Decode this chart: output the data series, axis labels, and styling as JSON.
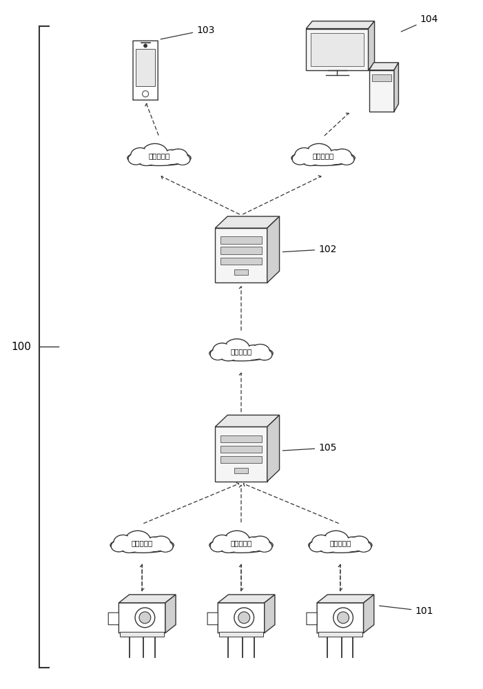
{
  "bg_color": "#ffffff",
  "line_color": "#333333",
  "fill_light": "#f5f5f5",
  "fill_mid": "#e8e8e8",
  "fill_dark": "#d0d0d0",
  "label_100": "100",
  "label_101": "101",
  "label_102": "102",
  "label_103": "103",
  "label_104": "104",
  "label_105": "105",
  "cloud_label_1": "第一类网络",
  "cloud_label_2": "第二类网络",
  "cloud_label_3": "第三类网络",
  "figsize": [
    7.01,
    10.0
  ],
  "dpi": 100
}
